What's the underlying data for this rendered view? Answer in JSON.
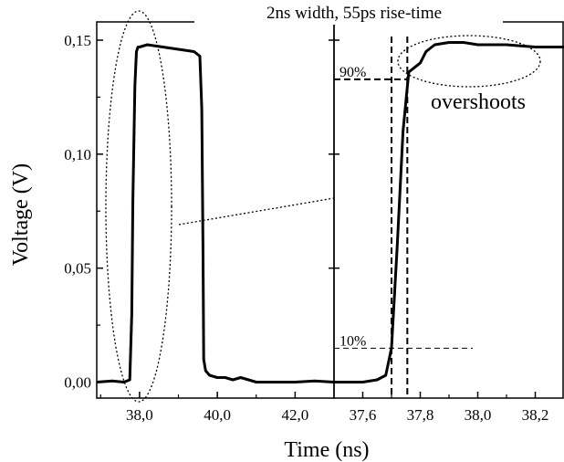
{
  "chart_data": [
    {
      "type": "line",
      "panel": "left",
      "title": "",
      "xlabel": "Time (ns)",
      "ylabel": "Voltage (V)",
      "xlim": [
        36.9,
        43.0
      ],
      "ylim": [
        -0.007,
        0.158
      ],
      "xticks": [
        {
          "v": 38.0,
          "t": "38,0"
        },
        {
          "v": 40.0,
          "t": "40,0"
        },
        {
          "v": 42.0,
          "t": "42,0"
        }
      ],
      "yticks": [
        {
          "v": 0.0,
          "t": "0,00"
        },
        {
          "v": 0.05,
          "t": "0,05"
        },
        {
          "v": 0.1,
          "t": "0,10"
        },
        {
          "v": 0.15,
          "t": "0,15"
        }
      ],
      "series": [
        {
          "x": [
            36.9,
            37.3,
            37.6,
            37.75,
            37.8,
            37.83,
            37.88,
            37.92,
            37.96,
            38.0,
            38.2,
            38.6,
            39.0,
            39.4,
            39.55,
            39.6,
            39.63,
            39.65,
            39.7,
            39.8,
            40.0,
            40.2,
            40.4,
            40.6,
            41.0,
            41.5,
            42.0,
            42.5,
            43.0
          ],
          "y": [
            0.0,
            0.0005,
            0.0,
            0.001,
            0.03,
            0.08,
            0.13,
            0.145,
            0.147,
            0.147,
            0.148,
            0.147,
            0.146,
            0.145,
            0.143,
            0.12,
            0.06,
            0.01,
            0.005,
            0.003,
            0.002,
            0.002,
            0.001,
            0.002,
            0.0,
            0.0,
            0.0,
            0.0005,
            0.0
          ]
        }
      ]
    },
    {
      "type": "line",
      "panel": "right",
      "title": "2ns width, 55ps rise-time",
      "xlabel": "",
      "ylabel": "",
      "xlim": [
        37.5,
        38.3
      ],
      "ylim": [
        -0.007,
        0.158
      ],
      "xticks": [
        {
          "v": 37.6,
          "t": "37,6"
        },
        {
          "v": 37.8,
          "t": "37,8"
        },
        {
          "v": 38.0,
          "t": "38,0"
        },
        {
          "v": 38.2,
          "t": "38,2"
        }
      ],
      "series": [
        {
          "x": [
            37.5,
            37.6,
            37.65,
            37.68,
            37.7,
            37.72,
            37.74,
            37.76,
            37.78,
            37.8,
            37.82,
            37.85,
            37.9,
            37.95,
            38.0,
            38.1,
            38.2,
            38.3
          ],
          "y": [
            0.0,
            0.0,
            0.001,
            0.003,
            0.015,
            0.06,
            0.11,
            0.136,
            0.138,
            0.14,
            0.145,
            0.148,
            0.149,
            0.149,
            0.148,
            0.148,
            0.147,
            0.147
          ]
        }
      ],
      "reference_lines": {
        "level_90": {
          "label": "90%",
          "value": 0.1328
        },
        "level_10": {
          "label": "10%",
          "value": 0.0149
        },
        "t_10": 37.7,
        "t_90": 37.755
      },
      "annotations": {
        "overshoots_label": "overshoots"
      }
    }
  ]
}
